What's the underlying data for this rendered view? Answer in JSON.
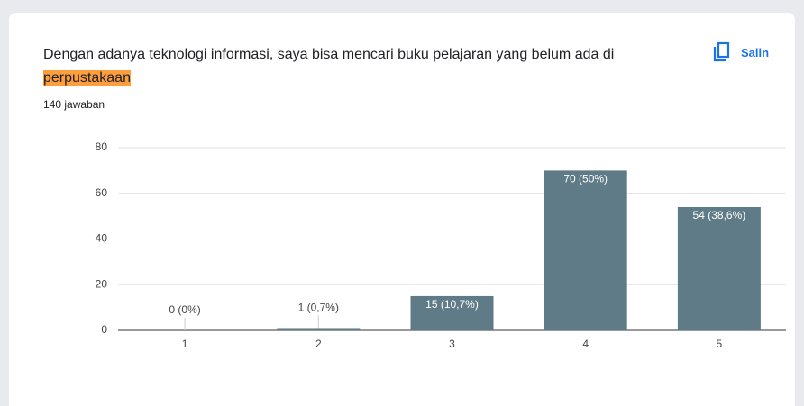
{
  "chart_data": {
    "type": "bar",
    "title": "Dengan adanya teknologi informasi, saya bisa mencari buku pelajaran yang belum ada di",
    "title_highlight": "perpustakaan",
    "subtitle": "140 jawaban",
    "copy_button": "Salin",
    "categories": [
      "1",
      "2",
      "3",
      "4",
      "5"
    ],
    "values": [
      0,
      1,
      15,
      70,
      54
    ],
    "value_labels": [
      "0 (0%)",
      "1 (0,7%)",
      "15 (10,7%)",
      "70 (50%)",
      "54 (38,6%)"
    ],
    "color": "#5f7b88",
    "ylim": [
      0,
      80
    ],
    "yticks": [
      0,
      20,
      40,
      60,
      80
    ],
    "grid": true
  }
}
